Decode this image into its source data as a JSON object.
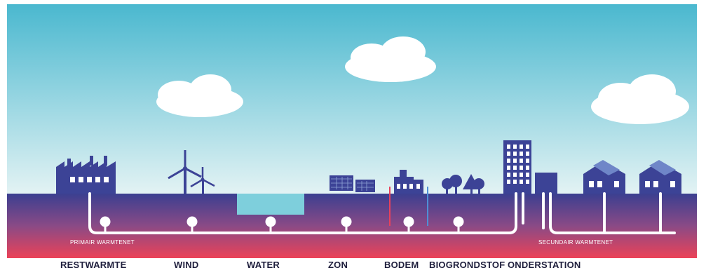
{
  "colors": {
    "sky_top": "#4ab8cf",
    "sky_bottom": "#dff1f3",
    "ground_top": "#3e3f8f",
    "ground_bottom": "#e8415b",
    "building": "#3c4396",
    "water": "#7ecfdc",
    "pipe": "#ffffff"
  },
  "icons": [
    "factory-icon",
    "wind-turbine-icon",
    "water-basin-icon",
    "solar-panel-icon",
    "ground-heat-building-icon",
    "trees-icon",
    "office-tower-icon",
    "substation-icon",
    "house-with-solar-icon"
  ],
  "network": {
    "primary": "PRIMAIR WARMTENET",
    "secondary": "SECUNDAIR WARMTENET"
  },
  "labels": {
    "restwarmte": "RESTWARMTE",
    "wind": "WIND",
    "water": "WATER",
    "zon": "ZON",
    "bodem": "BODEM",
    "biogrondstof": "BIOGRONDSTOF",
    "onderstation": "ONDERSTATION"
  }
}
